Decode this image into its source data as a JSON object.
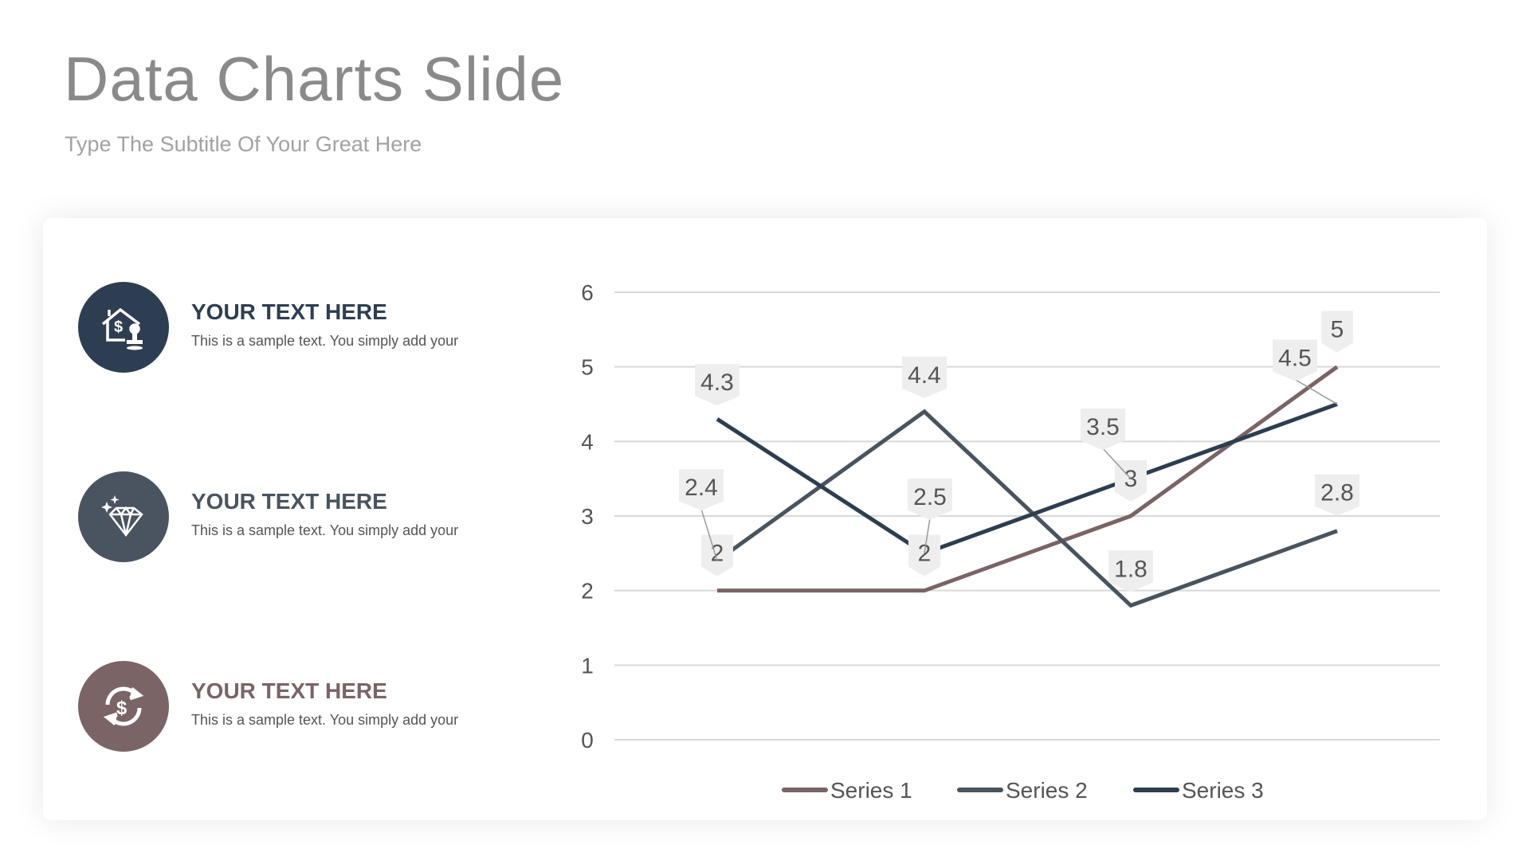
{
  "title": "Data Charts Slide",
  "subtitle": "Type The Subtitle Of Your Great Here",
  "items": [
    {
      "heading": "YOUR TEXT HERE",
      "body": "This is a sample text. You simply add your",
      "icon": "house-dollar-stamp-icon",
      "color": "#2e3e52"
    },
    {
      "heading": "YOUR TEXT HERE",
      "body": "This is a sample text. You simply add your",
      "icon": "diamond-icon",
      "color": "#4a5460"
    },
    {
      "heading": "YOUR TEXT HERE",
      "body": "This is a sample text. You simply add your",
      "icon": "dollar-exchange-icon",
      "color": "#7a6466"
    }
  ],
  "chart_data": {
    "type": "line",
    "categories": [
      "",
      "",
      "",
      ""
    ],
    "ylim": [
      0,
      6
    ],
    "yticks": [
      0,
      1,
      2,
      3,
      4,
      5,
      6
    ],
    "grid": true,
    "legend": "bottom",
    "data_labels": true,
    "series": [
      {
        "name": "Series 1",
        "values": [
          2,
          2,
          3,
          5
        ],
        "color": "#7a6466"
      },
      {
        "name": "Series 2",
        "values": [
          2.4,
          4.4,
          1.8,
          2.8
        ],
        "color": "#4a545e"
      },
      {
        "name": "Series 3",
        "values": [
          4.3,
          2.5,
          3.5,
          4.5
        ],
        "color": "#2d3e50"
      }
    ]
  }
}
